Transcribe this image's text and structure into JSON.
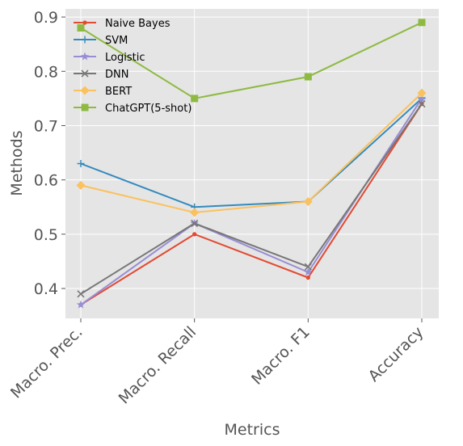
{
  "chart_data": {
    "type": "line",
    "title": "",
    "xlabel": "Metrics",
    "ylabel": "Methods",
    "categories": [
      "Macro. Prec.",
      "Macro. Recall",
      "Macro. F1",
      "Accuracy"
    ],
    "ylim": [
      0.345,
      0.915
    ],
    "yticks": [
      0.4,
      0.5,
      0.6,
      0.7,
      0.8,
      0.9
    ],
    "ytick_labels": [
      "0.4",
      "0.5",
      "0.6",
      "0.7",
      "0.8",
      "0.9"
    ],
    "grid": true,
    "legend_position": "top-left",
    "series": [
      {
        "name": "Naive Bayes",
        "values": [
          0.37,
          0.5,
          0.42,
          0.74
        ],
        "color": "#E24A33",
        "marker": "dot"
      },
      {
        "name": "SVM",
        "values": [
          0.63,
          0.55,
          0.56,
          0.75
        ],
        "color": "#348ABD",
        "marker": "plus"
      },
      {
        "name": "Logistic",
        "values": [
          0.37,
          0.52,
          0.43,
          0.75
        ],
        "color": "#988ED5",
        "marker": "star"
      },
      {
        "name": "DNN",
        "values": [
          0.39,
          0.52,
          0.44,
          0.74
        ],
        "color": "#777777",
        "marker": "x"
      },
      {
        "name": "BERT",
        "values": [
          0.59,
          0.54,
          0.56,
          0.76
        ],
        "color": "#FBC15E",
        "marker": "diamond"
      },
      {
        "name": "ChatGPT(5-shot)",
        "values": [
          0.88,
          0.75,
          0.79,
          0.89
        ],
        "color": "#8EBA42",
        "marker": "square"
      }
    ]
  }
}
